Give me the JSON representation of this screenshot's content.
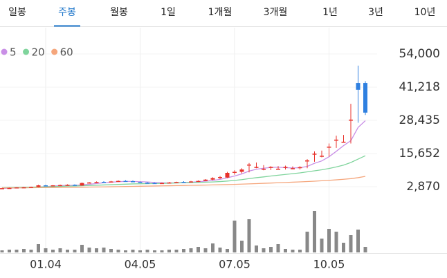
{
  "tabs": [
    "일봉",
    "주봉",
    "월봉",
    "1일",
    "1개월",
    "3개월",
    "1년",
    "3년",
    "10년"
  ],
  "selected_tab": 1,
  "chart_data": {
    "type": "candlestick",
    "categories": [
      null,
      null,
      null,
      null,
      null,
      null,
      "01.04",
      null,
      null,
      null,
      null,
      null,
      null,
      null,
      null,
      null,
      null,
      null,
      null,
      "04.05",
      null,
      null,
      null,
      null,
      null,
      null,
      null,
      null,
      null,
      null,
      null,
      null,
      "07.05",
      null,
      null,
      null,
      null,
      null,
      null,
      null,
      null,
      null,
      null,
      null,
      null,
      "10.05",
      null,
      null,
      null,
      null,
      null
    ],
    "open": [
      2100,
      2300,
      2450,
      2600,
      2650,
      2800,
      3400,
      3200,
      3400,
      3500,
      3600,
      3300,
      4300,
      4500,
      4700,
      4600,
      4900,
      5100,
      5000,
      4700,
      4400,
      4300,
      4200,
      4300,
      4500,
      4700,
      4600,
      4900,
      5100,
      5600,
      6200,
      6400,
      8200,
      8600,
      11400,
      10500,
      9500,
      10500,
      9800,
      10300,
      9700,
      10200,
      12800,
      15600,
      14800,
      18000,
      21000,
      20200,
      28700,
      42800,
      42800
    ],
    "high": [
      2400,
      2500,
      2700,
      2800,
      2900,
      3600,
      3600,
      3500,
      3700,
      3800,
      3800,
      4500,
      4700,
      4900,
      5000,
      5100,
      5300,
      5400,
      5300,
      4900,
      4700,
      4500,
      4500,
      4700,
      4800,
      5000,
      5100,
      5300,
      5800,
      6500,
      7000,
      8600,
      9200,
      10000,
      12000,
      12200,
      11200,
      10800,
      10800,
      11000,
      10700,
      10800,
      13500,
      16500,
      16800,
      19500,
      22500,
      22800,
      34800,
      49500,
      43500
    ],
    "low": [
      2000,
      2200,
      2400,
      2500,
      2550,
      2700,
      3100,
      3100,
      3300,
      3300,
      3200,
      3200,
      4100,
      4300,
      4400,
      4500,
      4700,
      4800,
      4600,
      4300,
      4200,
      4000,
      4000,
      4100,
      4300,
      4400,
      4500,
      4700,
      5000,
      5400,
      5800,
      6200,
      7500,
      8000,
      8400,
      10000,
      9200,
      9300,
      9400,
      9500,
      9600,
      9500,
      10000,
      12500,
      14200,
      14500,
      17800,
      19800,
      19500,
      27500,
      30500
    ],
    "close": [
      2300,
      2400,
      2600,
      2650,
      2800,
      3400,
      3200,
      3400,
      3500,
      3600,
      3300,
      4300,
      4500,
      4700,
      4600,
      4900,
      5100,
      4900,
      4700,
      4400,
      4300,
      4200,
      4300,
      4500,
      4700,
      4600,
      4900,
      5100,
      5600,
      6200,
      6600,
      8200,
      8600,
      9500,
      11400,
      10500,
      9800,
      10500,
      9800,
      10500,
      10000,
      10400,
      13000,
      15600,
      14800,
      18300,
      21000,
      20200,
      28700,
      40200,
      31400
    ],
    "up_color": "#e8322b",
    "down_color": "#2f80e0",
    "series": [
      {
        "name": "5",
        "color": "#c98fe6",
        "values": [
          2200,
          2300,
          2400,
          2500,
          2600,
          2750,
          2900,
          3100,
          3300,
          3400,
          3400,
          3600,
          3800,
          4100,
          4400,
          4600,
          4800,
          4900,
          4900,
          4800,
          4700,
          4500,
          4400,
          4300,
          4400,
          4500,
          4600,
          4800,
          5000,
          5300,
          5700,
          6300,
          7000,
          7800,
          8900,
          9600,
          10000,
          10300,
          10400,
          10200,
          10100,
          10200,
          10700,
          11900,
          12800,
          14400,
          16500,
          18700,
          20600,
          25700,
          28300
        ]
      },
      {
        "name": "20",
        "color": "#7fd49c",
        "values": [
          2500,
          2550,
          2600,
          2650,
          2700,
          2750,
          2800,
          2900,
          3000,
          3100,
          3150,
          3250,
          3350,
          3450,
          3550,
          3650,
          3750,
          3850,
          3950,
          4000,
          4050,
          4100,
          4150,
          4200,
          4300,
          4400,
          4450,
          4500,
          4600,
          4700,
          4850,
          5050,
          5300,
          5600,
          6000,
          6350,
          6650,
          7000,
          7300,
          7600,
          7900,
          8200,
          8600,
          9000,
          9400,
          9900,
          10500,
          11200,
          12200,
          13500,
          14800
        ]
      },
      {
        "name": "60",
        "color": "#f5a67c",
        "values": [
          2400,
          2420,
          2440,
          2460,
          2480,
          2500,
          2530,
          2560,
          2590,
          2620,
          2650,
          2690,
          2730,
          2770,
          2810,
          2850,
          2900,
          2950,
          3000,
          3050,
          3100,
          3150,
          3200,
          3250,
          3300,
          3350,
          3400,
          3450,
          3500,
          3560,
          3620,
          3690,
          3770,
          3860,
          3960,
          4070,
          4180,
          4290,
          4400,
          4510,
          4620,
          4740,
          4870,
          5010,
          5160,
          5330,
          5520,
          5730,
          5980,
          6350,
          6870
        ]
      }
    ],
    "volume": {
      "color": "#888888",
      "ylim": [
        0,
        80
      ],
      "values": [
        3,
        4,
        4,
        5,
        4,
        12,
        6,
        4,
        6,
        4,
        4,
        11,
        7,
        6,
        7,
        5,
        4,
        3,
        4,
        3,
        4,
        3,
        3,
        4,
        4,
        5,
        6,
        8,
        6,
        13,
        7,
        5,
        46,
        17,
        48,
        10,
        6,
        8,
        12,
        5,
        4,
        4,
        30,
        60,
        20,
        34,
        30,
        14,
        25,
        33,
        8
      ]
    },
    "ylim": [
      2870,
      54000
    ],
    "yticks": [
      {
        "value": 54000,
        "label": "54,000"
      },
      {
        "value": 41218,
        "label": "41,218"
      },
      {
        "value": 28435,
        "label": "28,435"
      },
      {
        "value": 15652,
        "label": "15,652"
      },
      {
        "value": 2870,
        "label": "2,870"
      }
    ],
    "grid": true
  }
}
